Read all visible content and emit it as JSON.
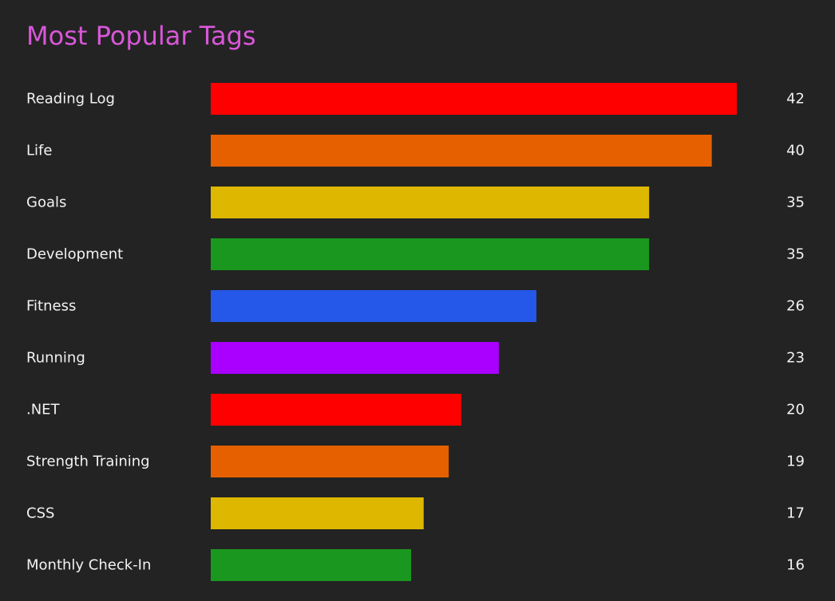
{
  "chart_data": {
    "type": "bar",
    "orientation": "horizontal",
    "title": "Most Popular Tags",
    "categories": [
      "Reading Log",
      "Life",
      "Goals",
      "Development",
      "Fitness",
      "Running",
      ".NET",
      "Strength Training",
      "CSS",
      "Monthly Check-In"
    ],
    "values": [
      42,
      40,
      35,
      35,
      26,
      23,
      20,
      19,
      17,
      16
    ],
    "xlim": [
      0,
      42
    ],
    "grid": false,
    "data_labels": true,
    "colors": [
      "#ff0000",
      "#e66000",
      "#ddb700",
      "#1a971e",
      "#2557e8",
      "#aa00ff",
      "#ff0000",
      "#e66000",
      "#ddb700",
      "#1a971e"
    ]
  }
}
